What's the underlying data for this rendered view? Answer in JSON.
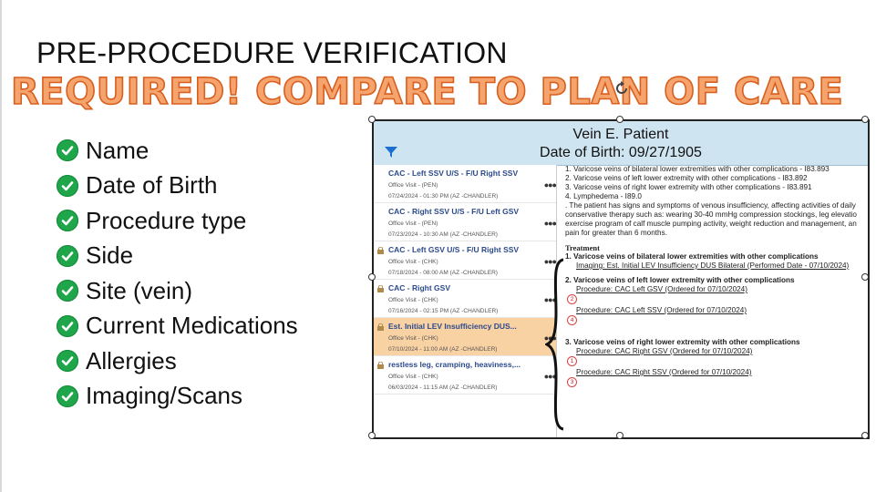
{
  "slide": {
    "title": "PRE-PROCEDURE VERIFICATION",
    "subtitle": "REQUIRED! COMPARE TO PLAN OF CARE",
    "checklist": [
      "Name",
      "Date of Birth",
      "Procedure type",
      "Side",
      "Site (vein)",
      "Current Medications",
      "Allergies",
      "Imaging/Scans"
    ]
  },
  "ehr": {
    "patient_name": "Vein E. Patient",
    "patient_dob": "Date of Birth: 09/27/1905",
    "visits": [
      {
        "title": "CAC - Left SSV U/S - F/U Right SSV",
        "type": "Office Visit - (PEN)",
        "datetime": "07/24/2024 - 01:30 PM (AZ -CHANDLER)",
        "locked": false,
        "selected": false
      },
      {
        "title": "CAC - Right SSV U/S - F/U Left GSV",
        "type": "Office Visit - (PEN)",
        "datetime": "07/23/2024 - 10:30 AM (AZ -CHANDLER)",
        "locked": false,
        "selected": false
      },
      {
        "title": "CAC - Left GSV U/S - F/U Right SSV",
        "type": "Office Visit - (CHK)",
        "datetime": "07/18/2024 - 08:00 AM (AZ -CHANDLER)",
        "locked": true,
        "selected": false
      },
      {
        "title": "CAC - Right GSV",
        "type": "Office Visit - (CHK)",
        "datetime": "07/16/2024 - 02:15 PM (AZ -CHANDLER)",
        "locked": true,
        "selected": false
      },
      {
        "title": "Est. Initial LEV Insufficiency DUS...",
        "type": "Office Visit - (CHK)",
        "datetime": "07/10/2024 - 11:00 AM (AZ -CHANDLER)",
        "locked": true,
        "selected": true
      },
      {
        "title": "restless leg, cramping, heaviness,...",
        "type": "Office Visit - (CHK)",
        "datetime": "06/03/2024 - 11:15 AM (AZ -CHANDLER)",
        "locked": true,
        "selected": false
      }
    ],
    "notes": {
      "dx": [
        "1. Varicose veins of bilateral lower extremities with other complications - I83.893",
        "2. Varicose veins of left lower extremity with other complications - I83.892",
        "3. Varicose veins of right lower extremity with other complications - I83.891",
        "4. Lymphedema - I89.0",
        ". The patient has signs and symptoms of venous insufficiency, affecting activities of daily",
        "conservative therapy such as: wearing 30-40 mmHg compression stockings, leg elevatio",
        "exercise program of calf muscle pumping activity, weight reduction and management, an",
        "pain for greater than 6 months."
      ],
      "treatment_label": "Treatment",
      "t1_heading": "1. Varicose veins of bilateral lower extremities with other complications",
      "t1_imaging": "Imaging: Est. Initial LEV Insufficiency DUS Bilateral (Performed Date - 07/10/2024)",
      "t2_heading": "2. Varicose veins of left lower extremity with other complications",
      "t2_proc1": "Procedure: CAC Left GSV (Ordered for 07/10/2024)",
      "t2_circle1": "2",
      "t2_proc2": "Procedure: CAC Left SSV (Ordered for 07/10/2024)",
      "t2_circle2": "4",
      "t3_heading": "3. Varicose veins of right lower extremity with other complications",
      "t3_proc1": "Procedure: CAC Right GSV (Ordered for 07/10/2024)",
      "t3_circle1": "1",
      "t3_proc2": "Procedure: CAC Right SSV (Ordered for 07/10/2024)",
      "t3_circle2": "3"
    }
  },
  "colors": {
    "subtitle_fill": "#f5a46d",
    "subtitle_stroke": "#d95f1f",
    "check_green": "#1fa64a",
    "header_blue": "#cfe4f1",
    "selected_visit": "#f9d2a4",
    "link_blue": "#2b4a8c"
  }
}
